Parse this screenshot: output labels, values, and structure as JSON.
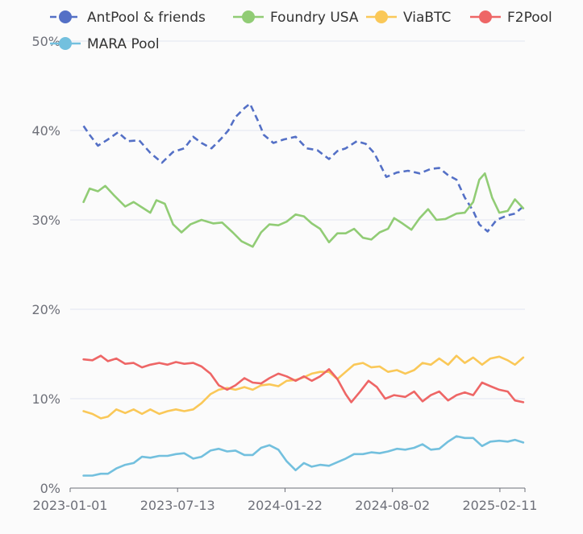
{
  "chart_data": {
    "type": "line",
    "title": "",
    "xlabel": "",
    "ylabel": "",
    "x_range": [
      "2023-01-01",
      "2025-03-28"
    ],
    "x_ticks": [
      "2023-01-01",
      "2023-07-13",
      "2024-01-22",
      "2024-08-02",
      "2025-02-11"
    ],
    "y_ticks": [
      "0%",
      "10%",
      "20%",
      "30%",
      "40%",
      "50%"
    ],
    "ylim": [
      0,
      50
    ],
    "grid": true,
    "legend_position": "top",
    "series": [
      {
        "name": "AntPool & friends",
        "color": "#5470c6",
        "dashed": true,
        "points": [
          [
            "2023-01-25",
            40.5
          ],
          [
            "2023-02-05",
            39.5
          ],
          [
            "2023-02-20",
            38.3
          ],
          [
            "2023-03-10",
            39.0
          ],
          [
            "2023-03-28",
            39.8
          ],
          [
            "2023-04-15",
            38.8
          ],
          [
            "2023-05-05",
            38.9
          ],
          [
            "2023-05-25",
            37.5
          ],
          [
            "2023-06-15",
            36.4
          ],
          [
            "2023-07-05",
            37.6
          ],
          [
            "2023-07-25",
            38.0
          ],
          [
            "2023-08-10",
            39.3
          ],
          [
            "2023-08-25",
            38.6
          ],
          [
            "2023-09-12",
            38.0
          ],
          [
            "2023-09-28",
            39.0
          ],
          [
            "2023-10-12",
            40.0
          ],
          [
            "2023-10-25",
            41.5
          ],
          [
            "2023-11-10",
            42.5
          ],
          [
            "2023-11-20",
            43.0
          ],
          [
            "2023-12-05",
            41.0
          ],
          [
            "2023-12-15",
            39.5
          ],
          [
            "2024-01-01",
            38.6
          ],
          [
            "2024-01-20",
            39.0
          ],
          [
            "2024-02-10",
            39.3
          ],
          [
            "2024-03-01",
            38.0
          ],
          [
            "2024-03-20",
            37.8
          ],
          [
            "2024-04-10",
            36.8
          ],
          [
            "2024-04-25",
            37.7
          ],
          [
            "2024-05-10",
            38.0
          ],
          [
            "2024-05-30",
            38.8
          ],
          [
            "2024-06-15",
            38.5
          ],
          [
            "2024-06-30",
            37.5
          ],
          [
            "2024-07-10",
            36.3
          ],
          [
            "2024-07-22",
            34.8
          ],
          [
            "2024-08-10",
            35.3
          ],
          [
            "2024-08-30",
            35.5
          ],
          [
            "2024-09-20",
            35.2
          ],
          [
            "2024-10-10",
            35.7
          ],
          [
            "2024-10-25",
            35.8
          ],
          [
            "2024-11-10",
            35.0
          ],
          [
            "2024-11-25",
            34.5
          ],
          [
            "2024-12-10",
            32.5
          ],
          [
            "2024-12-25",
            31.0
          ],
          [
            "2025-01-05",
            29.5
          ],
          [
            "2025-01-20",
            28.7
          ],
          [
            "2025-02-05",
            30.0
          ],
          [
            "2025-02-25",
            30.5
          ],
          [
            "2025-03-10",
            30.7
          ],
          [
            "2025-03-25",
            31.5
          ]
        ]
      },
      {
        "name": "Foundry USA",
        "color": "#91cc75",
        "dashed": false,
        "points": [
          [
            "2023-01-25",
            32.0
          ],
          [
            "2023-02-05",
            33.5
          ],
          [
            "2023-02-20",
            33.2
          ],
          [
            "2023-03-05",
            33.8
          ],
          [
            "2023-03-20",
            32.8
          ],
          [
            "2023-04-10",
            31.5
          ],
          [
            "2023-04-25",
            32.0
          ],
          [
            "2023-05-10",
            31.4
          ],
          [
            "2023-05-25",
            30.8
          ],
          [
            "2023-06-05",
            32.2
          ],
          [
            "2023-06-20",
            31.8
          ],
          [
            "2023-07-05",
            29.5
          ],
          [
            "2023-07-20",
            28.6
          ],
          [
            "2023-08-05",
            29.5
          ],
          [
            "2023-08-25",
            30.0
          ],
          [
            "2023-09-15",
            29.6
          ],
          [
            "2023-10-01",
            29.7
          ],
          [
            "2023-10-20",
            28.6
          ],
          [
            "2023-11-05",
            27.6
          ],
          [
            "2023-11-25",
            27.0
          ],
          [
            "2023-12-10",
            28.6
          ],
          [
            "2023-12-25",
            29.5
          ],
          [
            "2024-01-10",
            29.4
          ],
          [
            "2024-01-25",
            29.8
          ],
          [
            "2024-02-10",
            30.6
          ],
          [
            "2024-02-25",
            30.4
          ],
          [
            "2024-03-10",
            29.6
          ],
          [
            "2024-03-25",
            29.0
          ],
          [
            "2024-04-10",
            27.5
          ],
          [
            "2024-04-25",
            28.5
          ],
          [
            "2024-05-10",
            28.5
          ],
          [
            "2024-05-25",
            29.0
          ],
          [
            "2024-06-10",
            28.0
          ],
          [
            "2024-06-25",
            27.8
          ],
          [
            "2024-07-10",
            28.6
          ],
          [
            "2024-07-25",
            29.0
          ],
          [
            "2024-08-05",
            30.2
          ],
          [
            "2024-08-20",
            29.6
          ],
          [
            "2024-09-05",
            28.9
          ],
          [
            "2024-09-20",
            30.2
          ],
          [
            "2024-10-05",
            31.2
          ],
          [
            "2024-10-20",
            30.0
          ],
          [
            "2024-11-05",
            30.1
          ],
          [
            "2024-11-25",
            30.7
          ],
          [
            "2024-12-10",
            30.8
          ],
          [
            "2024-12-25",
            32.0
          ],
          [
            "2025-01-05",
            34.5
          ],
          [
            "2025-01-15",
            35.2
          ],
          [
            "2025-01-28",
            32.5
          ],
          [
            "2025-02-10",
            30.8
          ],
          [
            "2025-02-25",
            31.0
          ],
          [
            "2025-03-10",
            32.3
          ],
          [
            "2025-03-25",
            31.3
          ]
        ]
      },
      {
        "name": "ViaBTC",
        "color": "#fac858",
        "dashed": false,
        "points": [
          [
            "2023-01-25",
            8.6
          ],
          [
            "2023-02-10",
            8.3
          ],
          [
            "2023-02-25",
            7.8
          ],
          [
            "2023-03-10",
            8.0
          ],
          [
            "2023-03-25",
            8.8
          ],
          [
            "2023-04-10",
            8.4
          ],
          [
            "2023-04-25",
            8.8
          ],
          [
            "2023-05-10",
            8.3
          ],
          [
            "2023-05-25",
            8.8
          ],
          [
            "2023-06-10",
            8.3
          ],
          [
            "2023-06-25",
            8.6
          ],
          [
            "2023-07-10",
            8.8
          ],
          [
            "2023-07-25",
            8.6
          ],
          [
            "2023-08-10",
            8.8
          ],
          [
            "2023-08-25",
            9.5
          ],
          [
            "2023-09-10",
            10.5
          ],
          [
            "2023-09-25",
            11.0
          ],
          [
            "2023-10-10",
            11.2
          ],
          [
            "2023-10-25",
            11.0
          ],
          [
            "2023-11-10",
            11.3
          ],
          [
            "2023-11-25",
            11.0
          ],
          [
            "2023-12-10",
            11.5
          ],
          [
            "2023-12-25",
            11.6
          ],
          [
            "2024-01-10",
            11.4
          ],
          [
            "2024-01-25",
            12.0
          ],
          [
            "2024-02-10",
            12.1
          ],
          [
            "2024-02-25",
            12.4
          ],
          [
            "2024-03-10",
            12.8
          ],
          [
            "2024-03-25",
            13.0
          ],
          [
            "2024-04-10",
            13.0
          ],
          [
            "2024-04-25",
            12.2
          ],
          [
            "2024-05-10",
            13.0
          ],
          [
            "2024-05-25",
            13.8
          ],
          [
            "2024-06-10",
            14.0
          ],
          [
            "2024-06-25",
            13.5
          ],
          [
            "2024-07-10",
            13.6
          ],
          [
            "2024-07-25",
            13.0
          ],
          [
            "2024-08-10",
            13.2
          ],
          [
            "2024-08-25",
            12.8
          ],
          [
            "2024-09-10",
            13.2
          ],
          [
            "2024-09-25",
            14.0
          ],
          [
            "2024-10-10",
            13.8
          ],
          [
            "2024-10-25",
            14.5
          ],
          [
            "2024-11-10",
            13.8
          ],
          [
            "2024-11-25",
            14.8
          ],
          [
            "2024-12-10",
            14.0
          ],
          [
            "2024-12-25",
            14.6
          ],
          [
            "2025-01-10",
            13.8
          ],
          [
            "2025-01-25",
            14.5
          ],
          [
            "2025-02-10",
            14.7
          ],
          [
            "2025-02-25",
            14.3
          ],
          [
            "2025-03-10",
            13.8
          ],
          [
            "2025-03-25",
            14.6
          ]
        ]
      },
      {
        "name": "F2Pool",
        "color": "#ee6666",
        "dashed": false,
        "points": [
          [
            "2023-01-25",
            14.4
          ],
          [
            "2023-02-10",
            14.3
          ],
          [
            "2023-02-25",
            14.8
          ],
          [
            "2023-03-10",
            14.2
          ],
          [
            "2023-03-25",
            14.5
          ],
          [
            "2023-04-10",
            13.9
          ],
          [
            "2023-04-25",
            14.0
          ],
          [
            "2023-05-10",
            13.5
          ],
          [
            "2023-05-25",
            13.8
          ],
          [
            "2023-06-10",
            14.0
          ],
          [
            "2023-06-25",
            13.8
          ],
          [
            "2023-07-10",
            14.1
          ],
          [
            "2023-07-25",
            13.9
          ],
          [
            "2023-08-10",
            14.0
          ],
          [
            "2023-08-25",
            13.6
          ],
          [
            "2023-09-10",
            12.8
          ],
          [
            "2023-09-25",
            11.5
          ],
          [
            "2023-10-10",
            11.0
          ],
          [
            "2023-10-25",
            11.5
          ],
          [
            "2023-11-10",
            12.3
          ],
          [
            "2023-11-25",
            11.8
          ],
          [
            "2023-12-10",
            11.7
          ],
          [
            "2023-12-25",
            12.3
          ],
          [
            "2024-01-10",
            12.8
          ],
          [
            "2024-01-25",
            12.5
          ],
          [
            "2024-02-10",
            12.0
          ],
          [
            "2024-02-25",
            12.5
          ],
          [
            "2024-03-10",
            12.0
          ],
          [
            "2024-03-25",
            12.5
          ],
          [
            "2024-04-10",
            13.3
          ],
          [
            "2024-04-25",
            12.2
          ],
          [
            "2024-05-10",
            10.5
          ],
          [
            "2024-05-20",
            9.6
          ],
          [
            "2024-06-05",
            10.8
          ],
          [
            "2024-06-20",
            12.0
          ],
          [
            "2024-07-05",
            11.3
          ],
          [
            "2024-07-20",
            10.0
          ],
          [
            "2024-08-05",
            10.4
          ],
          [
            "2024-08-25",
            10.2
          ],
          [
            "2024-09-10",
            10.8
          ],
          [
            "2024-09-25",
            9.7
          ],
          [
            "2024-10-10",
            10.4
          ],
          [
            "2024-10-25",
            10.8
          ],
          [
            "2024-11-10",
            9.8
          ],
          [
            "2024-11-25",
            10.4
          ],
          [
            "2024-12-10",
            10.7
          ],
          [
            "2024-12-25",
            10.4
          ],
          [
            "2025-01-10",
            11.8
          ],
          [
            "2025-01-25",
            11.4
          ],
          [
            "2025-02-10",
            11.0
          ],
          [
            "2025-02-25",
            10.8
          ],
          [
            "2025-03-10",
            9.8
          ],
          [
            "2025-03-25",
            9.6
          ]
        ]
      },
      {
        "name": "MARA Pool",
        "color": "#73c0de",
        "dashed": false,
        "points": [
          [
            "2023-01-25",
            1.4
          ],
          [
            "2023-02-10",
            1.4
          ],
          [
            "2023-02-25",
            1.6
          ],
          [
            "2023-03-10",
            1.6
          ],
          [
            "2023-03-25",
            2.2
          ],
          [
            "2023-04-10",
            2.6
          ],
          [
            "2023-04-25",
            2.8
          ],
          [
            "2023-05-10",
            3.5
          ],
          [
            "2023-05-25",
            3.4
          ],
          [
            "2023-06-10",
            3.6
          ],
          [
            "2023-06-25",
            3.6
          ],
          [
            "2023-07-10",
            3.8
          ],
          [
            "2023-07-25",
            3.9
          ],
          [
            "2023-08-10",
            3.3
          ],
          [
            "2023-08-25",
            3.5
          ],
          [
            "2023-09-10",
            4.2
          ],
          [
            "2023-09-25",
            4.4
          ],
          [
            "2023-10-10",
            4.1
          ],
          [
            "2023-10-25",
            4.2
          ],
          [
            "2023-11-10",
            3.7
          ],
          [
            "2023-11-25",
            3.7
          ],
          [
            "2023-12-10",
            4.5
          ],
          [
            "2023-12-25",
            4.8
          ],
          [
            "2024-01-10",
            4.3
          ],
          [
            "2024-01-25",
            3.0
          ],
          [
            "2024-02-10",
            2.0
          ],
          [
            "2024-02-25",
            2.8
          ],
          [
            "2024-03-10",
            2.4
          ],
          [
            "2024-03-25",
            2.6
          ],
          [
            "2024-04-10",
            2.5
          ],
          [
            "2024-04-25",
            2.9
          ],
          [
            "2024-05-10",
            3.3
          ],
          [
            "2024-05-25",
            3.8
          ],
          [
            "2024-06-10",
            3.8
          ],
          [
            "2024-06-25",
            4.0
          ],
          [
            "2024-07-10",
            3.9
          ],
          [
            "2024-07-25",
            4.1
          ],
          [
            "2024-08-10",
            4.4
          ],
          [
            "2024-08-25",
            4.3
          ],
          [
            "2024-09-10",
            4.5
          ],
          [
            "2024-09-25",
            4.9
          ],
          [
            "2024-10-10",
            4.3
          ],
          [
            "2024-10-25",
            4.4
          ],
          [
            "2024-11-10",
            5.2
          ],
          [
            "2024-11-25",
            5.8
          ],
          [
            "2024-12-10",
            5.6
          ],
          [
            "2024-12-25",
            5.6
          ],
          [
            "2025-01-10",
            4.7
          ],
          [
            "2025-01-25",
            5.2
          ],
          [
            "2025-02-10",
            5.3
          ],
          [
            "2025-02-25",
            5.2
          ],
          [
            "2025-03-10",
            5.4
          ],
          [
            "2025-03-25",
            5.1
          ]
        ]
      }
    ]
  }
}
